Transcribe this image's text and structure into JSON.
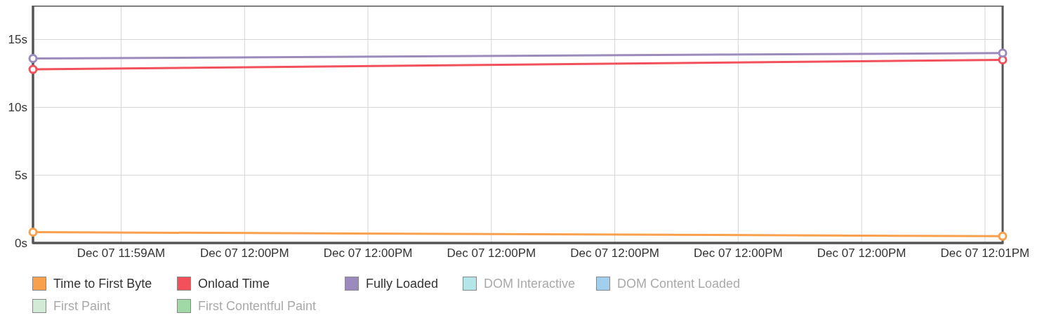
{
  "chart_data": {
    "type": "line",
    "categories": [
      null,
      null,
      null,
      null,
      null,
      "Dec 07 11:59AM",
      null,
      null,
      null,
      null,
      null,
      null,
      "Dec 07 12:00PM",
      null,
      null,
      null,
      null,
      null,
      null,
      "Dec 07 12:00PM",
      null,
      null,
      null,
      null,
      null,
      null,
      "Dec 07 12:00PM",
      null,
      null,
      null,
      null,
      null,
      null,
      "Dec 07 12:00PM",
      null,
      null,
      null,
      null,
      null,
      null,
      "Dec 07 12:00PM",
      null,
      null,
      null,
      null,
      null,
      null,
      "Dec 07 12:00PM",
      null,
      null,
      null,
      null,
      null,
      null,
      "Dec 07 12:01PM",
      null
    ],
    "ylim": [
      0,
      17.5
    ],
    "yticks": [
      {
        "value": 0,
        "label": "0s"
      },
      {
        "value": 5,
        "label": "5s"
      },
      {
        "value": 10,
        "label": "10s"
      },
      {
        "value": 15,
        "label": "15s"
      }
    ],
    "series": [
      {
        "name": "Time to First Byte",
        "color": "#f9a04c",
        "values": [
          0.8,
          null,
          null,
          null,
          null,
          null,
          null,
          null,
          null,
          null,
          null,
          null,
          null,
          null,
          null,
          null,
          null,
          null,
          null,
          null,
          null,
          null,
          null,
          null,
          null,
          null,
          null,
          null,
          null,
          null,
          null,
          null,
          null,
          null,
          null,
          null,
          null,
          null,
          null,
          null,
          null,
          null,
          null,
          null,
          null,
          null,
          null,
          null,
          null,
          null,
          null,
          null,
          null,
          null,
          null,
          0.5
        ]
      },
      {
        "name": "Onload Time",
        "color": "#f2505a",
        "values": [
          12.8,
          null,
          null,
          null,
          null,
          null,
          null,
          null,
          null,
          null,
          null,
          null,
          null,
          null,
          null,
          null,
          null,
          null,
          null,
          null,
          null,
          null,
          null,
          null,
          null,
          null,
          null,
          null,
          null,
          null,
          null,
          null,
          null,
          null,
          null,
          null,
          null,
          null,
          null,
          null,
          null,
          null,
          null,
          null,
          null,
          null,
          null,
          null,
          null,
          null,
          null,
          null,
          null,
          null,
          null,
          13.5
        ]
      },
      {
        "name": "Fully Loaded",
        "color": "#9b8bbd",
        "values": [
          13.6,
          null,
          null,
          null,
          null,
          null,
          null,
          null,
          null,
          null,
          null,
          null,
          null,
          null,
          null,
          null,
          null,
          null,
          null,
          null,
          null,
          null,
          null,
          null,
          null,
          null,
          null,
          null,
          null,
          null,
          null,
          null,
          null,
          null,
          null,
          null,
          null,
          null,
          null,
          null,
          null,
          null,
          null,
          null,
          null,
          null,
          null,
          null,
          null,
          null,
          null,
          null,
          null,
          null,
          null,
          14.0
        ]
      },
      {
        "name": "DOM Interactive",
        "color": "#b3e6e6",
        "values": [
          null,
          null,
          null,
          null,
          null,
          null,
          null,
          null,
          null,
          null,
          null,
          null,
          null,
          null,
          null,
          null,
          null,
          null,
          null,
          null,
          null,
          null,
          null,
          null,
          null,
          null,
          null,
          null,
          null,
          null,
          null,
          null,
          null,
          null,
          null,
          null,
          null,
          null,
          null,
          null,
          null,
          null,
          null,
          null,
          null,
          null,
          null,
          null,
          null,
          null,
          null,
          null,
          null,
          null,
          null,
          null
        ]
      },
      {
        "name": "DOM Content Loaded",
        "color": "#a3cfee",
        "values": [
          null,
          null,
          null,
          null,
          null,
          null,
          null,
          null,
          null,
          null,
          null,
          null,
          null,
          null,
          null,
          null,
          null,
          null,
          null,
          null,
          null,
          null,
          null,
          null,
          null,
          null,
          null,
          null,
          null,
          null,
          null,
          null,
          null,
          null,
          null,
          null,
          null,
          null,
          null,
          null,
          null,
          null,
          null,
          null,
          null,
          null,
          null,
          null,
          null,
          null,
          null,
          null,
          null,
          null,
          null,
          null
        ]
      },
      {
        "name": "First Paint",
        "color": "#d3ead6",
        "values": [
          null,
          null,
          null,
          null,
          null,
          null,
          null,
          null,
          null,
          null,
          null,
          null,
          null,
          null,
          null,
          null,
          null,
          null,
          null,
          null,
          null,
          null,
          null,
          null,
          null,
          null,
          null,
          null,
          null,
          null,
          null,
          null,
          null,
          null,
          null,
          null,
          null,
          null,
          null,
          null,
          null,
          null,
          null,
          null,
          null,
          null,
          null,
          null,
          null,
          null,
          null,
          null,
          null,
          null,
          null,
          null
        ]
      },
      {
        "name": "First Contentful Paint",
        "color": "#a0d8a6",
        "values": [
          null,
          null,
          null,
          null,
          null,
          null,
          null,
          null,
          null,
          null,
          null,
          null,
          null,
          null,
          null,
          null,
          null,
          null,
          null,
          null,
          null,
          null,
          null,
          null,
          null,
          null,
          null,
          null,
          null,
          null,
          null,
          null,
          null,
          null,
          null,
          null,
          null,
          null,
          null,
          null,
          null,
          null,
          null,
          null,
          null,
          null,
          null,
          null,
          null,
          null,
          null,
          null,
          null,
          null,
          null,
          null
        ]
      }
    ],
    "grid": true,
    "legend": "bottom",
    "marker": "circle",
    "line_style": "solid"
  }
}
